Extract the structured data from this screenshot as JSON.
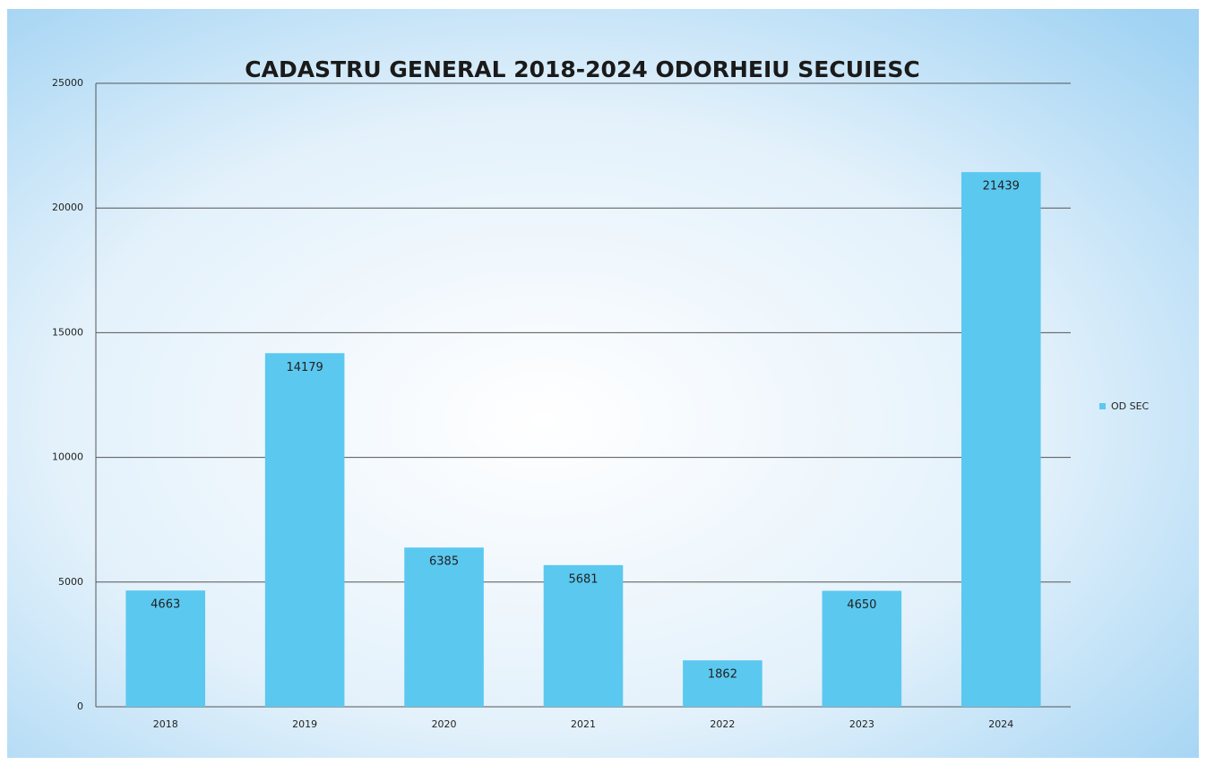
{
  "chart_data": {
    "type": "bar",
    "title": "CADASTRU GENERAL 2018-2024 ODORHEIU SECUIESC",
    "categories": [
      "2018",
      "2019",
      "2020",
      "2021",
      "2022",
      "2023",
      "2024"
    ],
    "series": [
      {
        "name": "OD SEC",
        "color": "#5bc8f0",
        "values": [
          4663,
          14179,
          6385,
          5681,
          1862,
          4650,
          21439
        ]
      }
    ],
    "ylim": [
      0,
      25000
    ],
    "yticks": [
      0,
      5000,
      10000,
      15000,
      20000,
      25000
    ],
    "grid": true,
    "legend": "right"
  }
}
